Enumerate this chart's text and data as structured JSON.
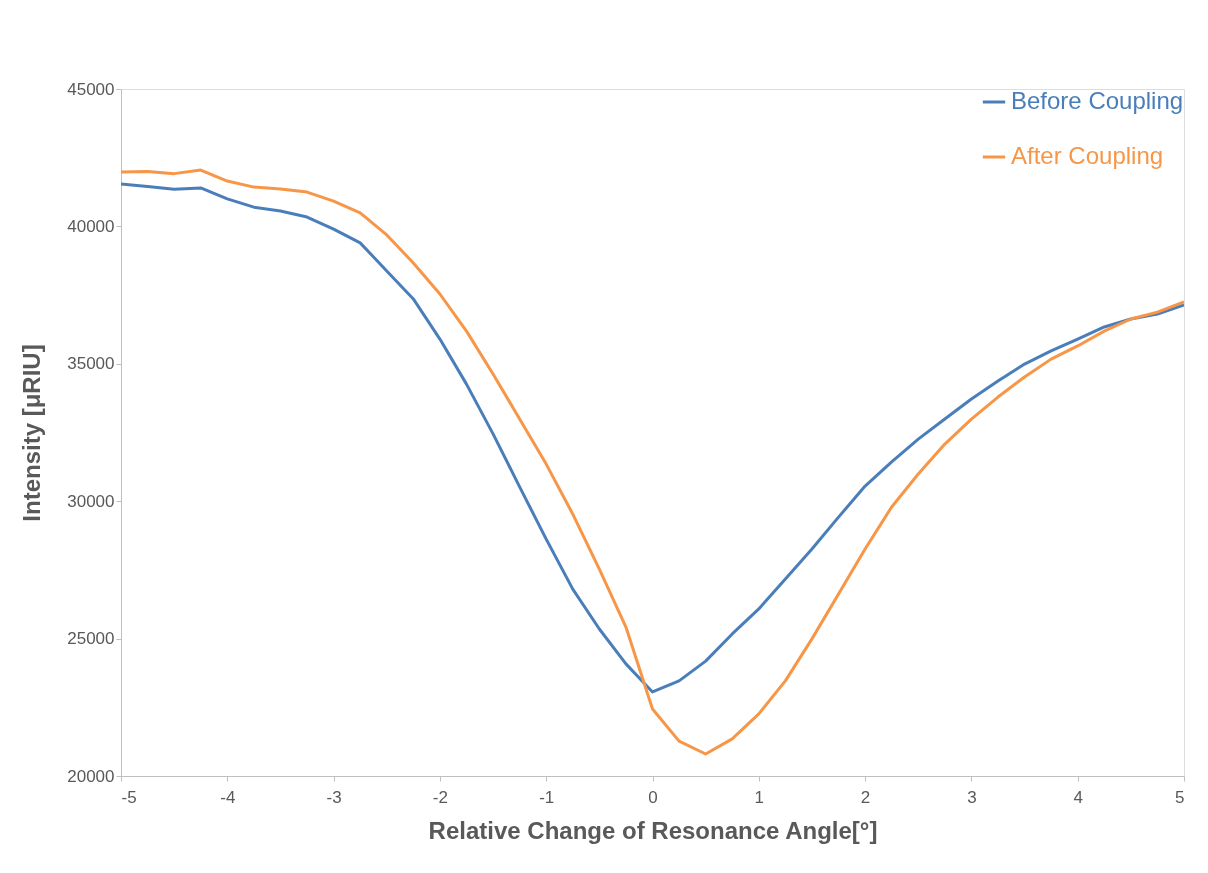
{
  "chart_data": {
    "type": "line",
    "xlabel": "Relative Change of Resonance Angle[°]",
    "ylabel": "Intensity [μRIU]",
    "x": [
      -5,
      -4.75,
      -4.5,
      -4.25,
      -4,
      -3.75,
      -3.5,
      -3.25,
      -3,
      -2.75,
      -2.5,
      -2.25,
      -2,
      -1.75,
      -1.5,
      -1.25,
      -1,
      -0.75,
      -0.5,
      -0.25,
      0,
      0.25,
      0.5,
      0.75,
      1,
      1.25,
      1.5,
      1.75,
      2,
      2.25,
      2.5,
      2.75,
      3,
      3.25,
      3.5,
      3.75,
      4,
      4.25,
      4.5,
      4.75,
      5
    ],
    "series": [
      {
        "name": "Before Coupling",
        "color": "#4a7ebb",
        "values": [
          41540,
          41450,
          41350,
          41400,
          41000,
          40700,
          40560,
          40340,
          39900,
          39400,
          38380,
          37360,
          35900,
          34260,
          32450,
          30520,
          28620,
          26800,
          25350,
          24080,
          23060,
          23460,
          24180,
          25170,
          26080,
          27170,
          28260,
          29420,
          30550,
          31430,
          32260,
          32990,
          33720,
          34370,
          34990,
          35470,
          35900,
          36340,
          36630,
          36810,
          37140
        ]
      },
      {
        "name": "After Coupling",
        "color": "#f79646",
        "values": [
          41980,
          42000,
          41920,
          42050,
          41650,
          41430,
          41360,
          41250,
          40920,
          40490,
          39690,
          38670,
          37540,
          36190,
          34630,
          32990,
          31350,
          29530,
          27530,
          25420,
          22440,
          21270,
          20800,
          21350,
          22260,
          23460,
          24990,
          26620,
          28260,
          29790,
          30990,
          32080,
          32990,
          33790,
          34520,
          35170,
          35650,
          36190,
          36630,
          36880,
          37250
        ]
      }
    ],
    "xlim": [
      -5,
      5
    ],
    "xticks": [
      -5,
      -4,
      -3,
      -2,
      -1,
      0,
      1,
      2,
      3,
      4,
      5
    ],
    "ylim": [
      20000,
      45000
    ],
    "yticks": [
      20000,
      25000,
      30000,
      35000,
      40000,
      45000
    ],
    "grid": false,
    "legend": "top right",
    "marker": "none",
    "line_style": "solid"
  }
}
